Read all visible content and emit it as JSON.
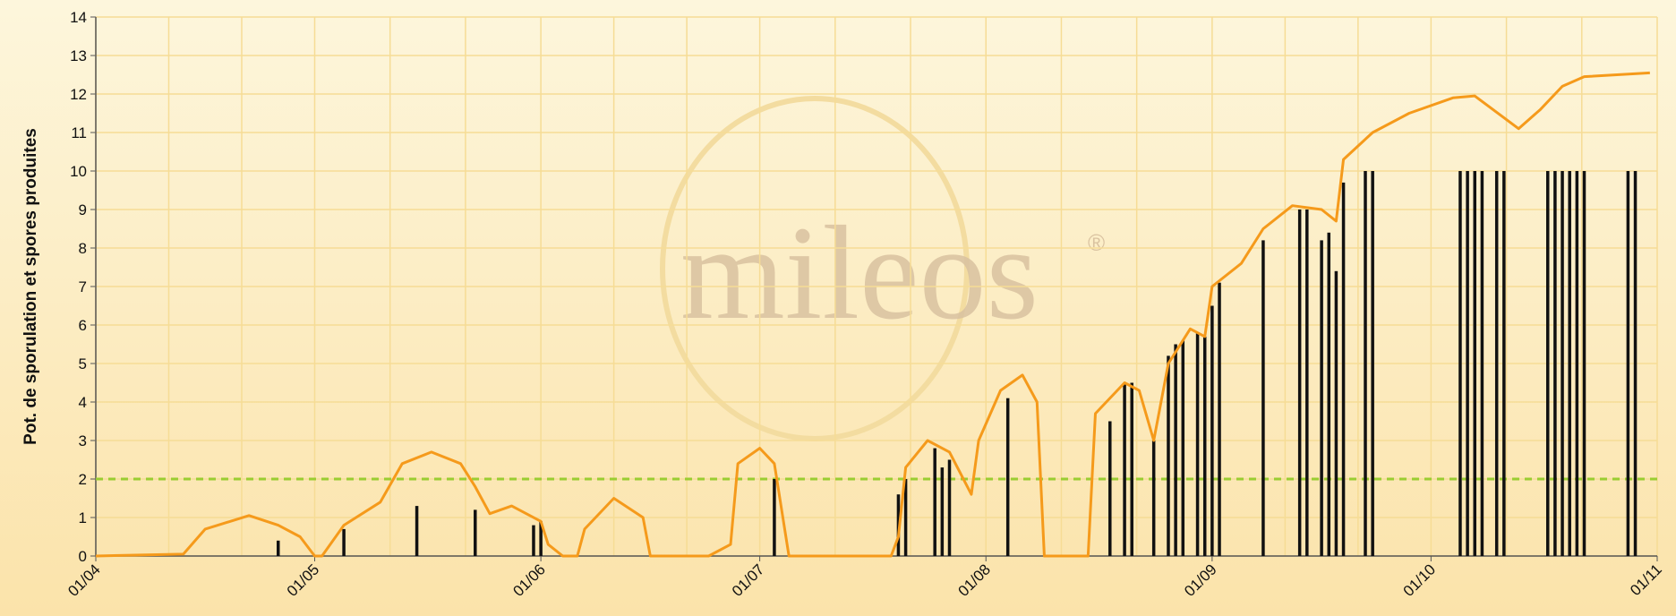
{
  "chart_data": {
    "type": "combo",
    "y_label": "Pot. de sporulation et spores produites",
    "watermark": "mileos",
    "watermark_mark": "®",
    "xlim": [
      0,
      214
    ],
    "xticks": [
      {
        "value": 0,
        "label": "01/04"
      },
      {
        "value": 30,
        "label": "01/05"
      },
      {
        "value": 61,
        "label": "01/06"
      },
      {
        "value": 91,
        "label": "01/07"
      },
      {
        "value": 122,
        "label": "01/08"
      },
      {
        "value": 153,
        "label": "01/09"
      },
      {
        "value": 183,
        "label": "01/10"
      },
      {
        "value": 214,
        "label": "01/11"
      }
    ],
    "ylim": [
      0,
      14
    ],
    "yticks": [
      0,
      1,
      2,
      3,
      4,
      5,
      6,
      7,
      8,
      9,
      10,
      11,
      12,
      13,
      14
    ],
    "grid": true,
    "threshold": 2,
    "threshold_color": "#9acd32",
    "series": [
      {
        "type": "line",
        "color": "#f59a1b",
        "x": [
          0,
          12,
          15,
          21,
          25,
          28,
          30,
          31,
          34,
          39,
          42,
          46,
          50,
          52,
          54,
          57,
          61,
          62,
          64,
          66,
          67,
          71,
          75,
          76,
          84,
          87,
          88,
          91,
          93,
          95,
          109,
          110,
          111,
          114,
          117,
          120,
          121,
          124,
          127,
          129,
          130,
          136,
          137,
          141,
          143,
          145,
          147,
          150,
          152,
          153,
          157,
          160,
          164,
          168,
          170,
          171,
          175,
          180,
          186,
          189,
          195,
          198,
          201,
          204,
          213
        ],
        "values": [
          0,
          0.05,
          0.7,
          1.05,
          0.8,
          0.5,
          0,
          0,
          0.8,
          1.4,
          2.4,
          2.7,
          2.4,
          1.8,
          1.1,
          1.3,
          0.9,
          0.3,
          0,
          0,
          0.7,
          1.5,
          1.0,
          0,
          0,
          0.3,
          2.4,
          2.8,
          2.4,
          0,
          0,
          0.5,
          2.3,
          3.0,
          2.7,
          1.6,
          3.0,
          4.3,
          4.7,
          4.0,
          0,
          0,
          3.7,
          4.5,
          4.3,
          3.0,
          5.0,
          5.9,
          5.7,
          7.0,
          7.6,
          8.5,
          9.1,
          9.0,
          8.7,
          10.3,
          11.0,
          11.5,
          11.9,
          11.95,
          11.1,
          11.6,
          12.2,
          12.45,
          12.55
        ]
      },
      {
        "type": "bar",
        "color": "#111111",
        "x": [
          25,
          34,
          44,
          52,
          60,
          61,
          93,
          110,
          111,
          115,
          116,
          117,
          125,
          139,
          141,
          142,
          145,
          147,
          148,
          149,
          151,
          152,
          153,
          154,
          160,
          165,
          166,
          168,
          169,
          170,
          171,
          174,
          175,
          187,
          188,
          189,
          190,
          192,
          193,
          199,
          200,
          201,
          202,
          203,
          204,
          210,
          211
        ],
        "values": [
          0.4,
          0.7,
          1.3,
          1.2,
          0.8,
          0.9,
          2.0,
          1.6,
          2.0,
          2.8,
          2.3,
          2.5,
          4.1,
          3.5,
          4.5,
          4.5,
          3.0,
          5.2,
          5.5,
          5.6,
          5.8,
          5.7,
          6.5,
          7.1,
          8.2,
          9.0,
          9.0,
          8.2,
          8.4,
          7.4,
          9.7,
          10,
          10,
          10,
          10,
          10,
          10,
          10,
          10,
          10,
          10,
          10,
          10,
          10,
          10,
          10,
          10
        ]
      }
    ]
  }
}
